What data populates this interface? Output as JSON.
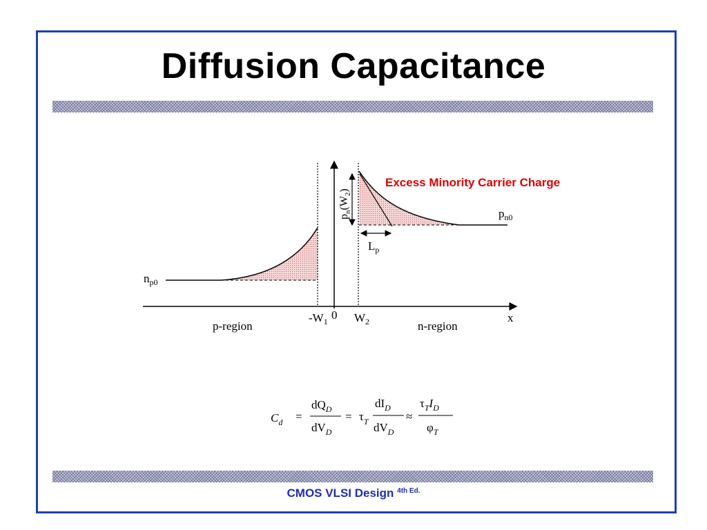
{
  "slide": {
    "title": "Diffusion Capacitance",
    "footer_main": "CMOS VLSI Design",
    "footer_sup": "4th Ed."
  },
  "diagram": {
    "caption": "Excess Minority Carrier Charge",
    "caption_color": "#e00000",
    "labels": {
      "np0": "n",
      "np0_sub": "p0",
      "pn0": "p",
      "pn0_sub": "n0",
      "pnW2": "p",
      "pnW2_sub": "n",
      "pnW2_arg": "(W",
      "pnW2_arg_sub": "2",
      "pnW2_close": ")",
      "Lp": "L",
      "Lp_sub": "p",
      "minusW1": "-W",
      "minusW1_sub": "1",
      "zero": "0",
      "W2": "W",
      "W2_sub": "2",
      "x": "x",
      "p_region": "p-region",
      "n_region": "n-region"
    },
    "fill_color": "#f4c8c8"
  },
  "formula": {
    "Cd": "C",
    "Cd_sub": "d",
    "eq1": "=",
    "num1": "dQ",
    "num1_sub": "D",
    "den1": "dV",
    "den1_sub": "D",
    "eq2": "=",
    "tau": "τ",
    "tau_sub": "T",
    "num2": "dI",
    "num2_sub": "D",
    "den2": "dV",
    "den2_sub": "D",
    "approx": "≈",
    "num3": "τ",
    "num3_sub": "T",
    "num3_b": "I",
    "num3_b_sub": "D",
    "den3": "φ",
    "den3_sub": "T"
  }
}
